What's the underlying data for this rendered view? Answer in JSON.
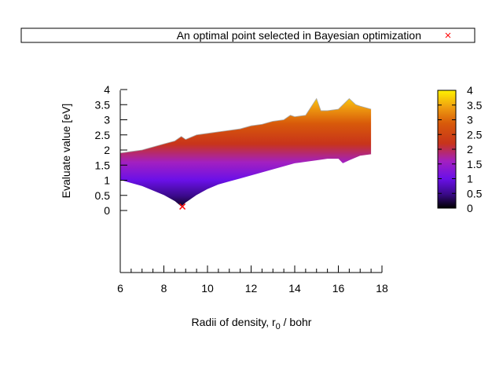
{
  "chart_data": {
    "type": "area",
    "title": "",
    "xlabel_main": "Radii of density, r",
    "xlabel_sub": "0",
    "xlabel_tail": " / bohr",
    "ylabel": "Evaluate value [eV]",
    "xlim": [
      6,
      18
    ],
    "ylim": [
      -2.1,
      4
    ],
    "x_ticks": [
      "6",
      "8",
      "10",
      "12",
      "14",
      "16",
      "18"
    ],
    "y_ticks": [
      "0",
      "0.5",
      "1",
      "1.5",
      "2",
      "2.5",
      "3",
      "3.5",
      "4"
    ],
    "legend": {
      "label": "An optimal point selected in Bayesian optimization",
      "marker": "x",
      "color": "#ff0000",
      "placement": "top"
    },
    "colorbar": {
      "range": [
        0,
        4
      ],
      "ticks": [
        "0",
        "0.5",
        "1",
        "1.5",
        "2",
        "2.5",
        "3",
        "3.5",
        "4"
      ],
      "palette": "black-blue-purple-red-orange-yellow"
    },
    "upper_envelope": {
      "x": [
        6.0,
        6.5,
        7.0,
        7.5,
        8.0,
        8.5,
        8.8,
        9.0,
        9.5,
        10.0,
        10.5,
        11.0,
        11.5,
        12.0,
        12.5,
        13.0,
        13.5,
        13.8,
        14.0,
        14.5,
        15.0,
        15.2,
        15.5,
        16.0,
        16.5,
        16.8,
        17.0,
        17.5
      ],
      "values": [
        1.9,
        1.95,
        2.0,
        2.1,
        2.2,
        2.3,
        2.45,
        2.35,
        2.5,
        2.55,
        2.6,
        2.65,
        2.7,
        2.8,
        2.85,
        2.95,
        3.0,
        3.15,
        3.1,
        3.15,
        3.7,
        3.3,
        3.3,
        3.35,
        3.7,
        3.5,
        3.45,
        3.35
      ]
    },
    "lower_envelope": {
      "x": [
        6.0,
        6.5,
        7.0,
        7.5,
        8.0,
        8.5,
        8.8,
        9.0,
        9.5,
        10.0,
        10.5,
        11.0,
        11.5,
        12.0,
        12.5,
        13.0,
        13.5,
        14.0,
        14.5,
        15.0,
        15.5,
        16.0,
        16.2,
        16.5,
        17.0,
        17.5
      ],
      "values": [
        1.0,
        0.9,
        0.8,
        0.65,
        0.5,
        0.3,
        0.12,
        0.25,
        0.5,
        0.7,
        0.85,
        0.95,
        1.05,
        1.15,
        1.25,
        1.35,
        1.45,
        1.55,
        1.6,
        1.65,
        1.7,
        1.7,
        1.55,
        1.65,
        1.8,
        1.85
      ]
    },
    "optimal_point": {
      "x": 8.85,
      "y": 0.13
    }
  }
}
